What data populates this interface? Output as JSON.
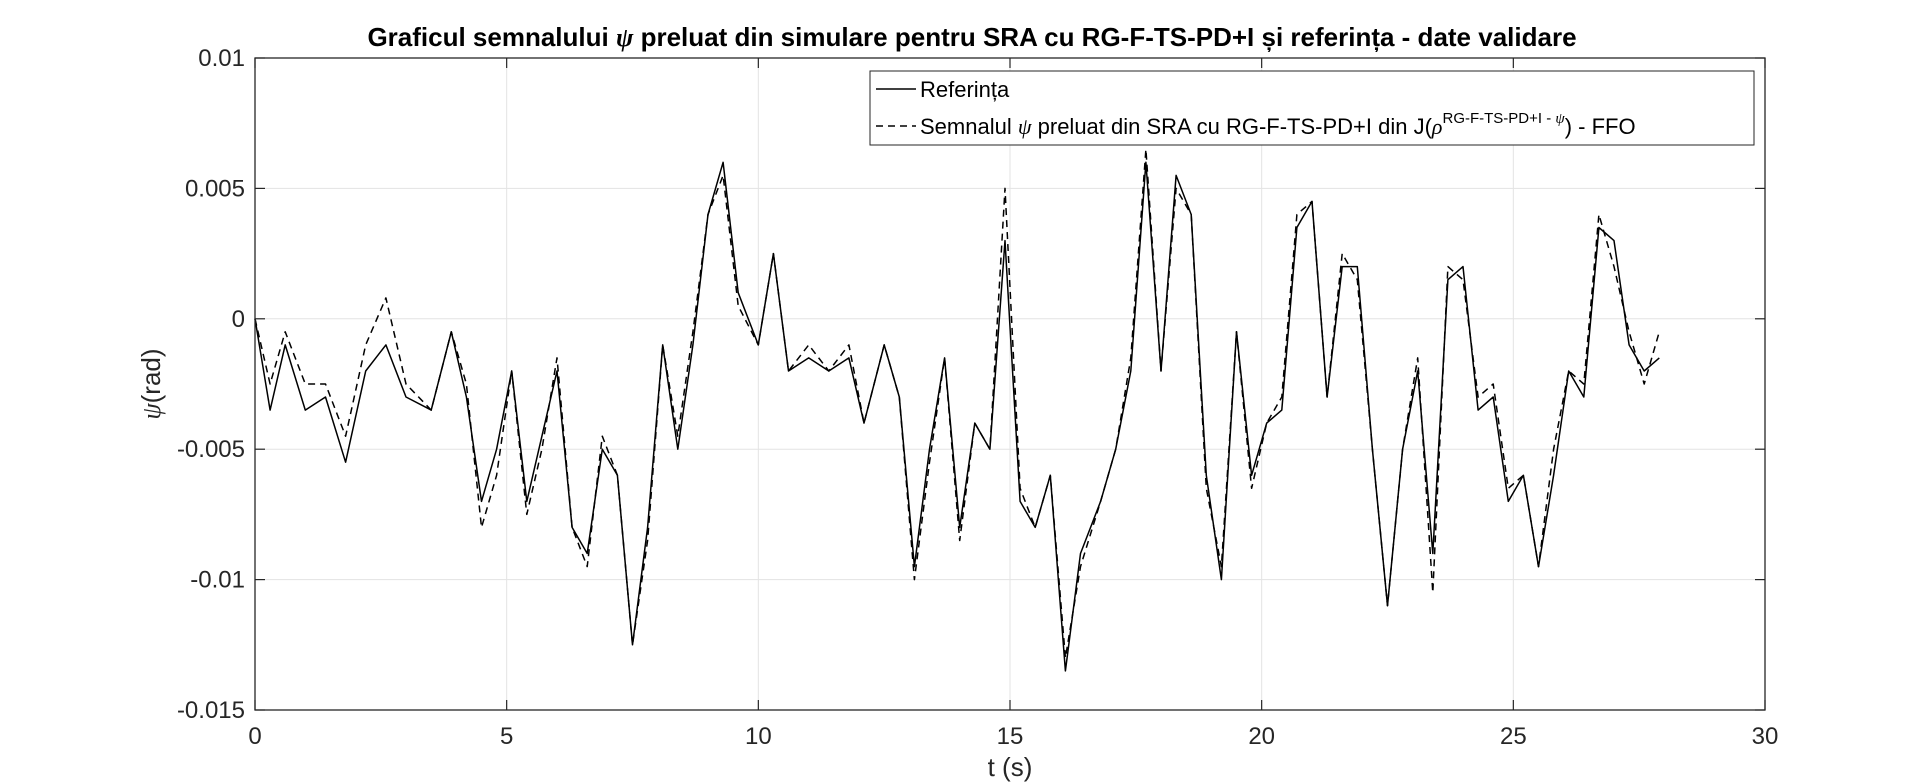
{
  "chart_data": {
    "type": "line",
    "title_parts": {
      "before_symbol": "Graficul semnalului ",
      "symbol": "ψ",
      "after_symbol": " preluat din simulare pentru SRA cu RG-F-TS-PD+I și referința  - date validare"
    },
    "xlabel": "t (s)",
    "ylabel_parts": {
      "symbol": "ψ",
      "unit": "(rad)"
    },
    "xlim": [
      0,
      30
    ],
    "ylim": [
      -0.015,
      0.01
    ],
    "x_ticks": [
      0,
      5,
      10,
      15,
      20,
      25,
      30
    ],
    "x_tick_labels": [
      "0",
      "5",
      "10",
      "15",
      "20",
      "25",
      "30"
    ],
    "y_ticks": [
      0.01,
      0.005,
      0,
      -0.005,
      -0.01,
      -0.015
    ],
    "y_tick_labels": [
      "0.01",
      "0.005",
      "0",
      "-0.005",
      "-0.01",
      "-0.015"
    ],
    "grid": true,
    "legend_placement": "top-right",
    "legend": {
      "entry1": "Referința",
      "entry2_prefix": "Semnalul ",
      "entry2_symbol": "ψ",
      "entry2_mid": " preluat din SRA cu RG-F-TS-PD+I din J(",
      "entry2_rho": "ρ",
      "entry2_sup": "RG-F-TS-PD+I - ",
      "entry2_sup_symbol": "ψ",
      "entry2_suffix": ") - FFO"
    },
    "series": [
      {
        "style": "solid",
        "color": "#000000",
        "x": [
          0,
          0.3,
          0.6,
          1.0,
          1.4,
          1.8,
          2.2,
          2.6,
          3.0,
          3.5,
          3.9,
          4.2,
          4.5,
          4.8,
          5.1,
          5.4,
          5.7,
          6.0,
          6.3,
          6.6,
          6.9,
          7.2,
          7.5,
          7.8,
          8.1,
          8.4,
          8.7,
          9.0,
          9.3,
          9.6,
          10.0,
          10.3,
          10.6,
          11.0,
          11.4,
          11.8,
          12.1,
          12.5,
          12.8,
          13.1,
          13.4,
          13.7,
          14.0,
          14.3,
          14.6,
          14.9,
          15.2,
          15.5,
          15.8,
          16.1,
          16.4,
          16.8,
          17.1,
          17.4,
          17.7,
          18.0,
          18.3,
          18.6,
          18.9,
          19.2,
          19.5,
          19.8,
          20.1,
          20.4,
          20.7,
          21.0,
          21.3,
          21.6,
          21.9,
          22.2,
          22.5,
          22.8,
          23.1,
          23.4,
          23.7,
          24.0,
          24.3,
          24.6,
          24.9,
          25.2,
          25.5,
          25.8,
          26.1,
          26.4,
          26.7,
          27.0,
          27.3,
          27.6,
          27.9
        ],
        "y": [
          0.0,
          -0.0035,
          -0.001,
          -0.0035,
          -0.003,
          -0.0055,
          -0.002,
          -0.001,
          -0.003,
          -0.0035,
          -0.0005,
          -0.003,
          -0.007,
          -0.005,
          -0.002,
          -0.007,
          -0.0045,
          -0.002,
          -0.008,
          -0.009,
          -0.005,
          -0.006,
          -0.0125,
          -0.008,
          -0.001,
          -0.005,
          -0.001,
          0.004,
          0.006,
          0.001,
          -0.001,
          0.0025,
          -0.002,
          -0.0015,
          -0.002,
          -0.0015,
          -0.004,
          -0.001,
          -0.003,
          -0.0095,
          -0.005,
          -0.0015,
          -0.008,
          -0.004,
          -0.005,
          0.003,
          -0.007,
          -0.008,
          -0.006,
          -0.0135,
          -0.009,
          -0.007,
          -0.005,
          -0.002,
          0.006,
          -0.002,
          0.0055,
          0.004,
          -0.006,
          -0.01,
          -0.0005,
          -0.006,
          -0.004,
          -0.0035,
          0.0035,
          0.0045,
          -0.003,
          0.002,
          0.002,
          -0.005,
          -0.011,
          -0.005,
          -0.002,
          -0.009,
          0.0015,
          0.002,
          -0.0035,
          -0.003,
          -0.007,
          -0.006,
          -0.0095,
          -0.006,
          -0.002,
          -0.003,
          0.0035,
          0.003,
          -0.001,
          -0.002,
          -0.0015
        ]
      },
      {
        "style": "dashed",
        "color": "#000000",
        "x": [
          0,
          0.3,
          0.6,
          1.0,
          1.4,
          1.8,
          2.2,
          2.6,
          3.0,
          3.5,
          3.9,
          4.2,
          4.5,
          4.8,
          5.1,
          5.4,
          5.7,
          6.0,
          6.3,
          6.6,
          6.9,
          7.2,
          7.5,
          7.8,
          8.1,
          8.4,
          8.7,
          9.0,
          9.3,
          9.6,
          10.0,
          10.3,
          10.6,
          11.0,
          11.4,
          11.8,
          12.1,
          12.5,
          12.8,
          13.1,
          13.4,
          13.7,
          14.0,
          14.3,
          14.6,
          14.9,
          15.2,
          15.5,
          15.8,
          16.1,
          16.4,
          16.8,
          17.1,
          17.4,
          17.7,
          18.0,
          18.3,
          18.6,
          18.9,
          19.2,
          19.5,
          19.8,
          20.1,
          20.4,
          20.7,
          21.0,
          21.3,
          21.6,
          21.9,
          22.2,
          22.5,
          22.8,
          23.1,
          23.4,
          23.7,
          24.0,
          24.3,
          24.6,
          24.9,
          25.2,
          25.5,
          25.8,
          26.1,
          26.4,
          26.7,
          27.0,
          27.3,
          27.6,
          27.9
        ],
        "y": [
          0.0,
          -0.0025,
          -0.0005,
          -0.0025,
          -0.0025,
          -0.0045,
          -0.001,
          0.0008,
          -0.0025,
          -0.0035,
          -0.0005,
          -0.0025,
          -0.008,
          -0.006,
          -0.002,
          -0.0075,
          -0.005,
          -0.0015,
          -0.008,
          -0.0095,
          -0.0045,
          -0.006,
          -0.0125,
          -0.0085,
          -0.001,
          -0.0045,
          -0.0005,
          0.004,
          0.0055,
          0.0005,
          -0.001,
          0.0025,
          -0.002,
          -0.001,
          -0.002,
          -0.001,
          -0.004,
          -0.001,
          -0.003,
          -0.01,
          -0.0055,
          -0.0015,
          -0.0085,
          -0.004,
          -0.005,
          0.005,
          -0.0065,
          -0.008,
          -0.006,
          -0.013,
          -0.0095,
          -0.007,
          -0.005,
          -0.0015,
          0.0065,
          -0.002,
          0.005,
          0.004,
          -0.0065,
          -0.0095,
          -0.0005,
          -0.0065,
          -0.004,
          -0.003,
          0.004,
          0.0045,
          -0.003,
          0.0025,
          0.0015,
          -0.005,
          -0.011,
          -0.005,
          -0.0015,
          -0.0105,
          0.002,
          0.0015,
          -0.003,
          -0.0025,
          -0.0065,
          -0.006,
          -0.0095,
          -0.005,
          -0.002,
          -0.0025,
          0.004,
          0.002,
          -0.0005,
          -0.0025,
          -0.0005
        ]
      }
    ]
  }
}
